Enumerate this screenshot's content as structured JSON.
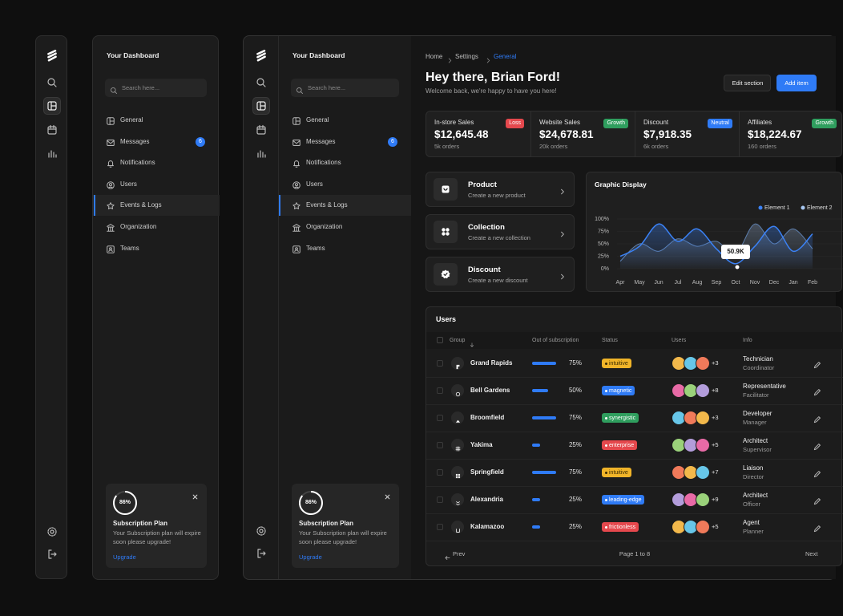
{
  "sidebars": [
    {
      "title": "Your Dashboard",
      "search_placeholder": "Search here...",
      "active_index": 4,
      "nav": [
        {
          "label": "General"
        },
        {
          "label": "Messages",
          "badge": "6"
        },
        {
          "label": "Notifications"
        },
        {
          "label": "Users"
        },
        {
          "label": "Events & Logs"
        },
        {
          "label": "Organization"
        },
        {
          "label": "Teams"
        }
      ],
      "subscription": {
        "percent": {
          "value": 86,
          "label": "86%"
        },
        "title": "Subscription Plan",
        "text": "Your Subscription plan will expire soon please upgrade!",
        "link": "Upgrade"
      }
    },
    {
      "title": "Your Dashboard",
      "search_placeholder": "Search here...",
      "active_index": 4,
      "nav": [
        {
          "label": "General"
        },
        {
          "label": "Messages",
          "badge": "6"
        },
        {
          "label": "Notifications"
        },
        {
          "label": "Users"
        },
        {
          "label": "Events & Logs"
        },
        {
          "label": "Organization"
        },
        {
          "label": "Teams"
        }
      ],
      "subscription": {
        "percent": {
          "value": 86,
          "label": "86%"
        },
        "title": "Subscription Plan",
        "text": "Your Subscription plan will expire soon please upgrade!",
        "link": "Upgrade"
      }
    }
  ],
  "breadcrumb": [
    "Home",
    "Settings",
    "General"
  ],
  "greeting": "Hey there, Brian Ford!",
  "welcome": "Welcome back, we're happy to have you here!",
  "buttons": [
    "Edit section",
    "Add item"
  ],
  "stats": [
    {
      "label": "In-store Sales",
      "value": "$12,645.48",
      "orders": "5k orders",
      "badge": "Loss",
      "badge_color": "#e5484d"
    },
    {
      "label": "Website Sales",
      "value": "$24,678.81",
      "orders": "20k orders",
      "badge": "Growth",
      "badge_color": "#2f9e5e"
    },
    {
      "label": "Discount",
      "value": "$7,918.35",
      "orders": "6k orders",
      "badge": "Neutral",
      "badge_color": "#2f7bf6"
    },
    {
      "label": "Affiliates",
      "value": "$18,224.67",
      "orders": "160 orders",
      "badge": "Growth",
      "badge_color": "#2f9e5e"
    }
  ],
  "actions": [
    {
      "title": "Product",
      "subtitle": "Create a new product"
    },
    {
      "title": "Collection",
      "subtitle": "Create a new collection"
    },
    {
      "title": "Discount",
      "subtitle": "Create a new discount"
    }
  ],
  "chart_data": {
    "type": "line",
    "title": "Graphic Display",
    "categories": [
      "Apr",
      "May",
      "Jun",
      "Jul",
      "Aug",
      "Sep",
      "Oct",
      "Nov",
      "Dec",
      "Jan",
      "Feb"
    ],
    "series": [
      {
        "name": "Element 1",
        "color": "#3b82f6",
        "values": [
          25,
          45,
          90,
          55,
          80,
          40,
          10,
          45,
          85,
          35,
          70
        ]
      },
      {
        "name": "Element 2",
        "color": "#a7c7f2",
        "values": [
          15,
          50,
          35,
          60,
          45,
          55,
          30,
          90,
          50,
          80,
          40
        ]
      }
    ],
    "ylim": [
      0,
      100
    ],
    "yticks": [
      {
        "value": 0,
        "label": "0%"
      },
      {
        "value": 25,
        "label": "25%"
      },
      {
        "value": 50,
        "label": "50%"
      },
      {
        "value": 75,
        "label": "75%"
      },
      {
        "value": 100,
        "label": "100%"
      }
    ],
    "annotation": "50.9K"
  },
  "users_table": {
    "title": "Users",
    "columns": [
      "Group",
      "Out of subscription",
      "Status",
      "Users",
      "Info"
    ],
    "rows": [
      {
        "group": "Grand Rapids",
        "subscription": {
          "value": 75,
          "label": "75%"
        },
        "status": "intuitive",
        "status_color": "#f0b429",
        "extra_users": "+3",
        "role": "Technician",
        "level": "Coordinator"
      },
      {
        "group": "Bell Gardens",
        "subscription": {
          "value": 50,
          "label": "50%"
        },
        "status": "magnetic",
        "status_color": "#2f7bf6",
        "extra_users": "+8",
        "role": "Representative",
        "level": "Facilitator"
      },
      {
        "group": "Broomfield",
        "subscription": {
          "value": 75,
          "label": "75%"
        },
        "status": "synergistic",
        "status_color": "#2f9e5e",
        "extra_users": "+3",
        "role": "Developer",
        "level": "Manager"
      },
      {
        "group": "Yakima",
        "subscription": {
          "value": 25,
          "label": "25%"
        },
        "status": "enterprise",
        "status_color": "#e5484d",
        "extra_users": "+5",
        "role": "Architect",
        "level": "Supervisor"
      },
      {
        "group": "Springfield",
        "subscription": {
          "value": 75,
          "label": "75%"
        },
        "status": "intuitive",
        "status_color": "#f0b429",
        "extra_users": "+7",
        "role": "Liaison",
        "level": "Director"
      },
      {
        "group": "Alexandria",
        "subscription": {
          "value": 25,
          "label": "25%"
        },
        "status": "leading-edge",
        "status_color": "#2f7bf6",
        "extra_users": "+9",
        "role": "Architect",
        "level": "Officer"
      },
      {
        "group": "Kalamazoo",
        "subscription": {
          "value": 25,
          "label": "25%"
        },
        "status": "frictionless",
        "status_color": "#e5484d",
        "extra_users": "+5",
        "role": "Agent",
        "level": "Planner"
      }
    ],
    "pagination": {
      "prev": "Prev",
      "page": "Page 1 to 8",
      "next": "Next"
    }
  }
}
